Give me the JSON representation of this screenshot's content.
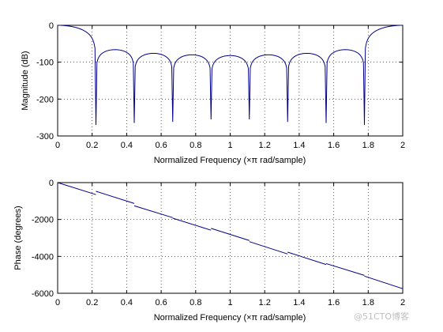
{
  "colors": {
    "line": "#00008b",
    "grid": "#000000",
    "axis": "#000000",
    "background": "#ffffff"
  },
  "watermark": "@51CTO博客",
  "chart_data": [
    {
      "type": "line",
      "xlabel": "Normalized Frequency  (×π rad/sample)",
      "ylabel": "Magnitude (dB)",
      "xlim": [
        0,
        2
      ],
      "ylim": [
        -300,
        0
      ],
      "xticks": [
        "0",
        "0.2",
        "0.4",
        "0.6",
        "0.8",
        "1",
        "1.2",
        "1.4",
        "1.6",
        "1.8",
        "2"
      ],
      "yticks": [
        "0",
        "-100",
        "-200",
        "-300"
      ],
      "grid": true,
      "nulls": [
        0.222,
        0.444,
        0.667,
        0.889,
        1.111,
        1.333,
        1.556,
        1.778
      ],
      "null_depth": [
        -270,
        -265,
        -262,
        -255,
        -255,
        -262,
        -265,
        -270
      ],
      "series": [
        {
          "x": [
            0,
            0.05,
            0.1,
            0.15,
            0.2,
            0.222,
            0.25,
            0.3,
            0.333,
            0.38,
            0.42,
            0.444,
            0.47,
            0.52,
            0.556,
            0.6,
            0.64,
            0.667,
            0.69,
            0.74,
            0.778,
            0.82,
            0.86,
            0.889,
            0.91,
            0.96,
            1.0,
            1.04,
            1.09,
            1.111,
            1.14,
            1.18,
            1.222,
            1.26,
            1.31,
            1.333,
            1.36,
            1.4,
            1.444,
            1.48,
            1.53,
            1.556,
            1.58,
            1.62,
            1.667,
            1.7,
            1.75,
            1.778,
            1.8,
            1.85,
            1.9,
            1.95,
            2.0
          ],
          "y": [
            0,
            -3,
            -15,
            -40,
            -105,
            -270,
            -100,
            -68,
            -66,
            -78,
            -120,
            -265,
            -115,
            -79,
            -76,
            -85,
            -125,
            -262,
            -120,
            -84,
            -80,
            -88,
            -130,
            -255,
            -125,
            -87,
            -82,
            -87,
            -125,
            -255,
            -130,
            -88,
            -80,
            -84,
            -120,
            -262,
            -125,
            -85,
            -76,
            -79,
            -115,
            -265,
            -120,
            -78,
            -66,
            -68,
            -100,
            -270,
            -105,
            -40,
            -15,
            -3,
            0
          ]
        }
      ]
    },
    {
      "type": "line",
      "xlabel": "Normalized Frequency  (×π rad/sample)",
      "ylabel": "Phase (degrees)",
      "xlim": [
        0,
        2
      ],
      "ylim": [
        -6000,
        0
      ],
      "xticks": [
        "0",
        "0.2",
        "0.4",
        "0.6",
        "0.8",
        "1",
        "1.2",
        "1.4",
        "1.6",
        "1.8",
        "2"
      ],
      "yticks": [
        "0",
        "-2000",
        "-4000",
        "-6000"
      ],
      "grid": true,
      "segments": [
        [
          [
            0,
            0
          ],
          [
            0.222,
            -650
          ]
        ],
        [
          [
            0.222,
            -470
          ],
          [
            0.444,
            -1130
          ]
        ],
        [
          [
            0.444,
            -1260
          ],
          [
            0.667,
            -1900
          ]
        ],
        [
          [
            0.667,
            -1930
          ],
          [
            0.889,
            -2580
          ]
        ],
        [
          [
            0.889,
            -2480
          ],
          [
            1.111,
            -3140
          ]
        ],
        [
          [
            1.111,
            -3200
          ],
          [
            1.333,
            -3870
          ]
        ],
        [
          [
            1.333,
            -3770
          ],
          [
            1.556,
            -4440
          ]
        ],
        [
          [
            1.556,
            -4390
          ],
          [
            1.778,
            -5030
          ]
        ],
        [
          [
            1.778,
            -5070
          ],
          [
            2.0,
            -5750
          ]
        ]
      ]
    }
  ]
}
